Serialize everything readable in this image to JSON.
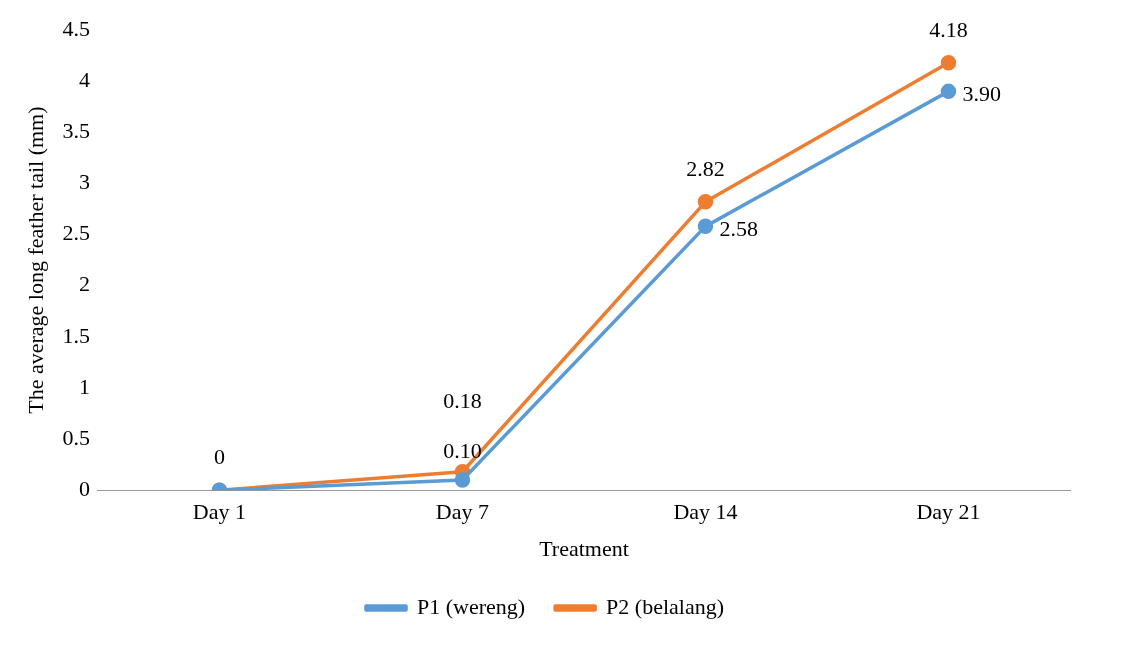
{
  "chart_data": {
    "type": "line",
    "xlabel": "Treatment",
    "ylabel": "The average long feather tail (mm)",
    "categories": [
      "Day 1",
      "Day 7",
      "Day 14",
      "Day 21"
    ],
    "series": [
      {
        "name": "P1 (wereng)",
        "color": "#5b9bd5",
        "values": [
          0,
          0.1,
          2.58,
          3.9
        ],
        "value_labels": [
          null,
          "0.10",
          "2.58",
          "3.90"
        ]
      },
      {
        "name": "P2 (belalang)",
        "color": "#ed7d31",
        "values": [
          0,
          0.18,
          2.82,
          4.18
        ],
        "value_labels": [
          "0",
          "0.18",
          "2.82",
          "4.18"
        ]
      }
    ],
    "ylim": [
      0,
      4.5
    ],
    "yticks": [
      0,
      0.5,
      1,
      1.5,
      2,
      2.5,
      3,
      3.5,
      4,
      4.5
    ],
    "grid": false,
    "legend": "bottom",
    "marker": "circle",
    "line_style": "solid"
  }
}
